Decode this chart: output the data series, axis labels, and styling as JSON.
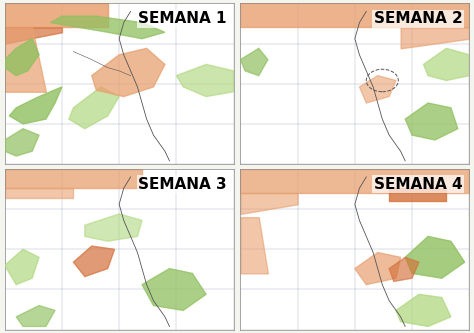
{
  "panels": [
    {
      "label": "SEMANA 1",
      "row": 0,
      "col": 0
    },
    {
      "label": "SEMANA 2",
      "row": 0,
      "col": 1
    },
    {
      "label": "SEMANA 3",
      "row": 1,
      "col": 0
    },
    {
      "label": "SEMANA 4",
      "row": 1,
      "col": 1
    }
  ],
  "background_color": "#f5f5f0",
  "land_color": "#f0ede0",
  "orange_color": "#e8a070",
  "orange_dark_color": "#d4703a",
  "green_color": "#90c060",
  "green_light_color": "#b0d880",
  "border_color": "#555555",
  "grid_color": "#aaaacc",
  "label_fontsize": 11,
  "label_fontweight": "bold",
  "fig_width": 4.74,
  "fig_height": 3.33,
  "fig_dpi": 100
}
